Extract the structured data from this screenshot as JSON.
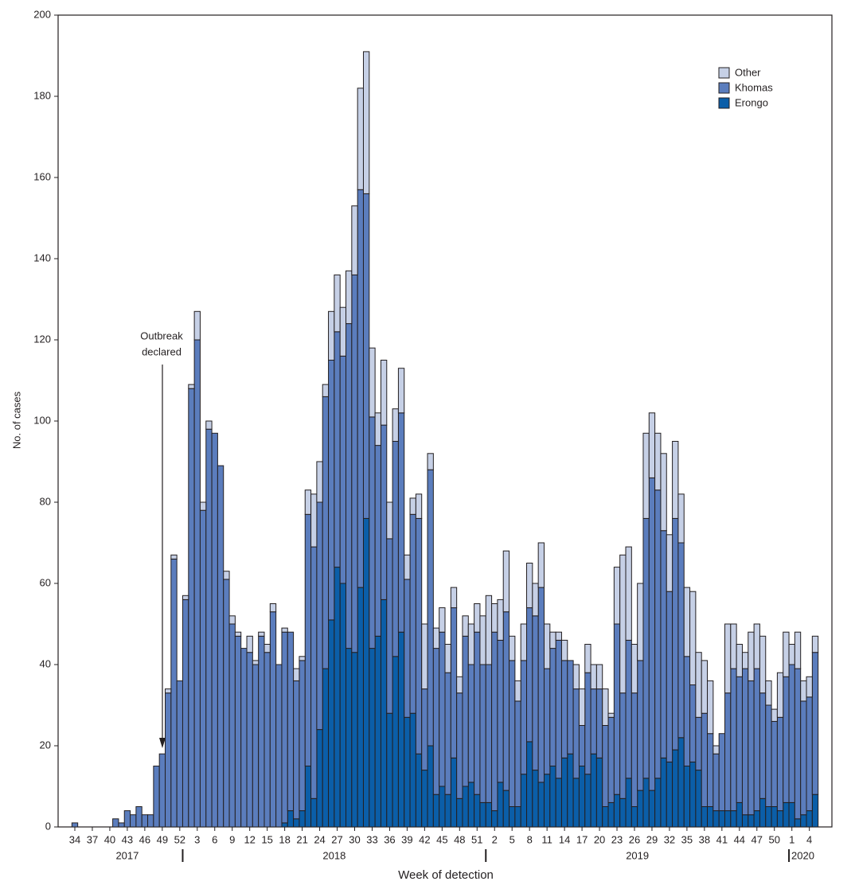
{
  "chart_data": {
    "type": "stacked_bar",
    "y_label": "No. of cases",
    "x_label": "Week of detection",
    "annotation": [
      "Outbreak",
      "declared"
    ],
    "years": [
      "2017",
      "2018",
      "2019",
      "2020"
    ],
    "legend": "upper right",
    "ylim": [
      0,
      200
    ],
    "yticks": [
      0,
      20,
      40,
      60,
      80,
      100,
      120,
      140,
      160,
      180,
      200
    ],
    "categories": [
      "34",
      null,
      null,
      "37",
      null,
      null,
      "40",
      null,
      null,
      "43",
      null,
      null,
      "46",
      null,
      null,
      "49",
      null,
      null,
      "52",
      null,
      null,
      "3",
      null,
      null,
      "6",
      null,
      null,
      "9",
      null,
      null,
      "12",
      null,
      null,
      "15",
      null,
      null,
      "18",
      null,
      null,
      "21",
      null,
      null,
      "24",
      null,
      null,
      "27",
      null,
      null,
      "30",
      null,
      null,
      "33",
      null,
      null,
      "36",
      null,
      null,
      "39",
      null,
      null,
      "42",
      null,
      null,
      "45",
      null,
      null,
      "48",
      null,
      null,
      "51",
      null,
      null,
      "2",
      null,
      null,
      "5",
      null,
      null,
      "8",
      null,
      null,
      "11",
      null,
      null,
      "14",
      null,
      null,
      "17",
      null,
      null,
      "20",
      null,
      null,
      "23",
      null,
      null,
      "26",
      null,
      null,
      "29",
      null,
      null,
      "32",
      null,
      null,
      "35",
      null,
      null,
      "38",
      null,
      null,
      "41",
      null,
      null,
      "44",
      null,
      null,
      "47",
      null,
      null,
      "50",
      null,
      null,
      "1",
      null,
      null,
      "4",
      null
    ],
    "series": [
      {
        "name": "Erongo",
        "color": "#0b5ea8",
        "values": [
          0,
          0,
          0,
          0,
          0,
          0,
          0,
          0,
          0,
          0,
          0,
          0,
          0,
          0,
          0,
          0,
          0,
          0,
          0,
          0,
          0,
          0,
          0,
          0,
          0,
          0,
          0,
          0,
          0,
          0,
          0,
          0,
          0,
          0,
          0,
          0,
          1,
          4,
          2,
          4,
          15,
          7,
          24,
          39,
          51,
          64,
          60,
          44,
          43,
          59,
          76,
          44,
          47,
          56,
          28,
          42,
          48,
          27,
          28,
          18,
          14,
          20,
          8,
          10,
          8,
          17,
          7,
          10,
          11,
          8,
          6,
          6,
          4,
          11,
          9,
          5,
          5,
          13,
          21,
          14,
          11,
          13,
          15,
          12,
          17,
          18,
          12,
          15,
          13,
          18,
          17,
          5,
          6,
          8,
          7,
          12,
          5,
          9,
          12,
          9,
          12,
          17,
          16,
          19,
          22,
          15,
          16,
          14,
          5,
          5,
          4,
          4,
          4,
          4,
          6,
          3,
          3,
          4,
          7,
          5,
          5,
          4,
          6,
          6,
          2,
          3,
          4,
          8
        ]
      },
      {
        "name": "Khomas",
        "color": "#5b7dbd",
        "values": [
          1,
          0,
          0,
          0,
          0,
          0,
          0,
          2,
          1,
          4,
          3,
          5,
          3,
          3,
          15,
          18,
          33,
          66,
          36,
          56,
          108,
          120,
          78,
          98,
          97,
          89,
          61,
          50,
          47,
          44,
          43,
          40,
          47,
          43,
          53,
          40,
          47,
          44,
          34,
          37,
          62,
          62,
          56,
          67,
          64,
          58,
          56,
          80,
          93,
          98,
          80,
          57,
          47,
          43,
          43,
          53,
          54,
          34,
          49,
          58,
          20,
          68,
          36,
          38,
          30,
          37,
          26,
          37,
          29,
          40,
          34,
          34,
          44,
          35,
          44,
          36,
          26,
          28,
          33,
          38,
          48,
          26,
          29,
          34,
          24,
          23,
          22,
          10,
          25,
          16,
          17,
          20,
          21,
          42,
          26,
          34,
          28,
          32,
          64,
          77,
          71,
          56,
          42,
          57,
          48,
          27,
          19,
          13,
          23,
          18,
          14,
          19,
          29,
          35,
          31,
          36,
          33,
          35,
          26,
          25,
          21,
          23,
          31,
          34,
          37,
          28,
          28,
          35
        ]
      },
      {
        "name": "Other",
        "color": "#c6d0e6",
        "values": [
          0,
          0,
          0,
          0,
          0,
          0,
          0,
          0,
          0,
          0,
          0,
          0,
          0,
          0,
          0,
          0,
          1,
          1,
          0,
          1,
          1,
          7,
          2,
          2,
          0,
          0,
          2,
          2,
          1,
          0,
          4,
          1,
          1,
          2,
          2,
          0,
          1,
          0,
          3,
          1,
          6,
          13,
          10,
          3,
          12,
          14,
          12,
          13,
          17,
          25,
          35,
          17,
          8,
          16,
          9,
          8,
          11,
          6,
          4,
          6,
          16,
          4,
          5,
          6,
          7,
          5,
          4,
          5,
          10,
          7,
          12,
          17,
          7,
          10,
          15,
          6,
          5,
          9,
          11,
          8,
          11,
          11,
          4,
          2,
          5,
          0,
          6,
          9,
          7,
          6,
          6,
          9,
          1,
          14,
          34,
          23,
          12,
          19,
          21,
          16,
          14,
          19,
          14,
          19,
          12,
          17,
          23,
          16,
          13,
          13,
          2,
          0,
          17,
          11,
          8,
          4,
          12,
          11,
          14,
          6,
          3,
          11,
          11,
          5,
          9,
          5,
          5,
          4
        ]
      }
    ]
  }
}
